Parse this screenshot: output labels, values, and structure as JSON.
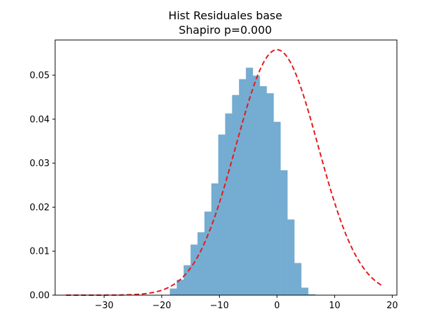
{
  "chart_data": {
    "type": "bar",
    "title_lines": [
      "Hist Residuales base",
      "Shapiro p=0.000"
    ],
    "xlabel": "",
    "ylabel": "",
    "xlim": [
      -38.5,
      20.8
    ],
    "ylim": [
      0,
      0.058
    ],
    "grid": false,
    "legend": "none",
    "x_ticks": [
      -30,
      -20,
      -10,
      0,
      10,
      20
    ],
    "x_tick_labels": [
      "−30",
      "−20",
      "−10",
      "0",
      "10",
      "20"
    ],
    "y_ticks": [
      0.0,
      0.01,
      0.02,
      0.03,
      0.04,
      0.05
    ],
    "y_tick_labels": [
      "0.00",
      "0.01",
      "0.02",
      "0.03",
      "0.04",
      "0.05"
    ],
    "bin_width": 1.2,
    "bin_start": -36.6,
    "densities": [
      0,
      0,
      0,
      0,
      0,
      0,
      0,
      0,
      0,
      0,
      0,
      0,
      0,
      0,
      0,
      0.0015,
      0.0035,
      0.0068,
      0.0115,
      0.0143,
      0.019,
      0.0254,
      0.0365,
      0.0413,
      0.0455,
      0.0491,
      0.0517,
      0.0499,
      0.0475,
      0.0459,
      0.0394,
      0.0284,
      0.0172,
      0.0073,
      0.0017,
      0.0002
    ],
    "normal_fit": {
      "mean": 0.0,
      "std": 7.15,
      "x_range": [
        -36.6,
        18.4
      ]
    },
    "colors": {
      "bars": "#75acd1",
      "curve": "#e31a1c",
      "axes": "#000000",
      "background": "#ffffff"
    }
  }
}
